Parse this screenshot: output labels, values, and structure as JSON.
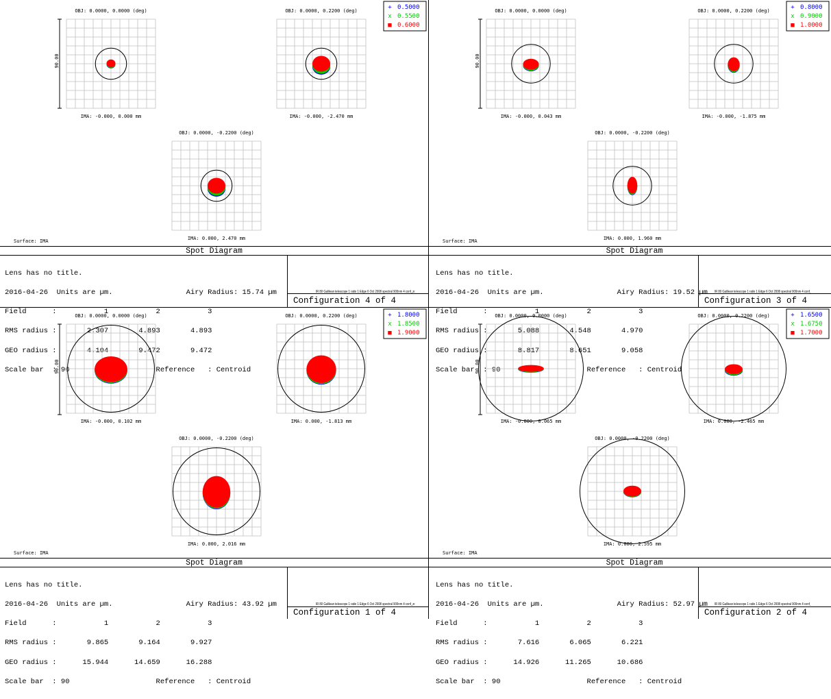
{
  "chart_data": [
    {
      "type": "scatter",
      "title": "Spot Diagram",
      "configuration": "Configuration 4 of 4",
      "legend": [
        {
          "wavelength": "0.5000",
          "marker": "+",
          "color": "#0000ff"
        },
        {
          "wavelength": "0.5500",
          "marker": "x",
          "color": "#00cc00"
        },
        {
          "wavelength": "0.6000",
          "marker": "■",
          "color": "#ff0000"
        }
      ],
      "fields": [
        {
          "obj": "OBJ: 0.0000, 0.0000 (deg)",
          "ima": "IMA: -0.000, 0.000 mm",
          "airy_um": 15.74,
          "spot_um": {
            "w": 9,
            "h": 8,
            "dy": 0,
            "sep": 0.6
          }
        },
        {
          "obj": "OBJ: 0.0000, 0.2200 (deg)",
          "ima": "IMA: -0.000, -2.470 mm",
          "airy_um": 15.74,
          "spot_um": {
            "w": 18,
            "h": 16,
            "dy": 1,
            "sep": 2
          }
        },
        {
          "obj": "OBJ: 0.0000, -0.2200 (deg)",
          "ima": "IMA: 0.000, 2.470 mm",
          "airy_um": 15.74,
          "spot_um": {
            "w": 18,
            "h": 16,
            "dy": 1,
            "sep": 2
          }
        }
      ],
      "scale_label": "90.00",
      "surface": "Surface: IMA",
      "info": {
        "line1": "Lens has no title.",
        "line2": "2016-04-26  Units are µm.                 Airy Radius: 15.74 µm",
        "line3": "Field      :           1           2           3",
        "line4": "RMS radius :       2.307       4.893       4.893",
        "line5": "GEO radius :       4.104       9.472       9.472",
        "line6": "Scale bar  : 90                    Reference   : Centroid"
      },
      "file_note": "IR 80 Galilean telescope 1 ratio 1 Edge 6 Oct 2008 spectral 900nm 4 conf_zoo_lens.zmx"
    },
    {
      "type": "scatter",
      "title": "Spot Diagram",
      "configuration": "Configuration 3 of 4",
      "legend": [
        {
          "wavelength": "0.8000",
          "marker": "+",
          "color": "#0000ff"
        },
        {
          "wavelength": "0.9000",
          "marker": "x",
          "color": "#00cc00"
        },
        {
          "wavelength": "1.0000",
          "marker": "■",
          "color": "#ff0000"
        }
      ],
      "fields": [
        {
          "obj": "OBJ: 0.0000, 0.0000 (deg)",
          "ima": "IMA: -0.000, 0.043 mm",
          "airy_um": 19.52,
          "spot_um": {
            "w": 16,
            "h": 11,
            "dy": 1,
            "sep": 1
          }
        },
        {
          "obj": "OBJ: 0.0000, 0.2200 (deg)",
          "ima": "IMA: -0.000, -1.875 mm",
          "airy_um": 19.52,
          "spot_um": {
            "w": 12,
            "h": 14,
            "dy": 1,
            "sep": 1
          }
        },
        {
          "obj": "OBJ: 0.0000, -0.2200 (deg)",
          "ima": "IMA: 0.000, 1.960 mm",
          "airy_um": 19.52,
          "spot_um": {
            "w": 10,
            "h": 17,
            "dy": 0,
            "sep": 1
          }
        }
      ],
      "scale_label": "90.00",
      "surface": "Surface: IMA",
      "info": {
        "line1": "Lens has no title.",
        "line2": "2016-04-26  Units are µm.                 Airy Radius: 19.52 µm",
        "line3": "Field      :           1           2           3",
        "line4": "RMS radius :       5.088       4.548       4.970",
        "line5": "GEO radius :       8.817       8.651       9.058",
        "line6": "Scale bar  : 90                    Reference   : Centroid"
      },
      "file_note": "IR 80 Galilean telescope 1 ratio 1 Edge 6 Oct 2008 spectral 900nm 4 conf_zoo_lens.zmx"
    },
    {
      "type": "scatter",
      "title": "Spot Diagram",
      "configuration": "Configuration 1 of 4",
      "legend": [
        {
          "wavelength": "1.8000",
          "marker": "+",
          "color": "#0000ff"
        },
        {
          "wavelength": "1.8500",
          "marker": "x",
          "color": "#00cc00"
        },
        {
          "wavelength": "1.9000",
          "marker": "■",
          "color": "#ff0000"
        }
      ],
      "fields": [
        {
          "obj": "OBJ: 0.0000, 0.0000 (deg)",
          "ima": "IMA: -0.000, 0.102 mm",
          "airy_um": 43.92,
          "spot_um": {
            "w": 33,
            "h": 26,
            "dy": 1,
            "sep": 1
          }
        },
        {
          "obj": "OBJ: 0.0000, 0.2200 (deg)",
          "ima": "IMA: 0.000, -1.813 mm",
          "airy_um": 43.92,
          "spot_um": {
            "w": 30,
            "h": 28,
            "dy": 1,
            "sep": 1
          }
        },
        {
          "obj": "OBJ: 0.0000, -0.2200 (deg)",
          "ima": "IMA: 0.000, 2.016 mm",
          "airy_um": 43.92,
          "spot_um": {
            "w": 28,
            "h": 32,
            "dy": 1,
            "sep": 1
          }
        }
      ],
      "scale_label": "90.00",
      "surface": "Surface: IMA",
      "info": {
        "line1": "Lens has no title.",
        "line2": "2016-04-26  Units are µm.                 Airy Radius: 43.92 µm",
        "line3": "Field      :           1           2           3",
        "line4": "RMS radius :       9.865       9.164       9.927",
        "line5": "GEO radius :      15.944      14.659      16.288",
        "line6": "Scale bar  : 90                    Reference   : Centroid"
      },
      "file_note": "IR 80 Galilean telescope 1 ratio 1 Edge 6 Oct 2008 spectral 900nm 4 conf_zoo_lens.zmx"
    },
    {
      "type": "scatter",
      "title": "Spot Diagram",
      "configuration": "Configuration 2 of 4",
      "legend": [
        {
          "wavelength": "1.6500",
          "marker": "+",
          "color": "#0000ff"
        },
        {
          "wavelength": "1.6750",
          "marker": "x",
          "color": "#00cc00"
        },
        {
          "wavelength": "1.7000",
          "marker": "■",
          "color": "#ff0000"
        }
      ],
      "fields": [
        {
          "obj": "OBJ: 0.0000, 0.0000 (deg)",
          "ima": "IMA: -0.000, 0.065 mm",
          "airy_um": 52.97,
          "spot_um": {
            "w": 26,
            "h": 7,
            "dy": 0,
            "sep": 0.5
          }
        },
        {
          "obj": "OBJ: 0.0000, 0.2200 (deg)",
          "ima": "IMA: 0.000, -2.465 mm",
          "airy_um": 52.97,
          "spot_um": {
            "w": 18,
            "h": 10,
            "dy": 1,
            "sep": 1
          }
        },
        {
          "obj": "OBJ: 0.0000, -0.2200 (deg)",
          "ima": "IMA: 0.000, 2.595 mm",
          "airy_um": 52.97,
          "spot_um": {
            "w": 18,
            "h": 11,
            "dy": 0,
            "sep": 0.5
          }
        }
      ],
      "scale_label": "90.00",
      "surface": "Surface: IMA",
      "info": {
        "line1": "Lens has no title.",
        "line2": "2016-04-26  Units are µm.                 Airy Radius: 52.97 µm",
        "line3": "Field      :           1           2           3",
        "line4": "RMS radius :       7.616       6.065       6.221",
        "line5": "GEO radius :      14.926      11.265      10.686",
        "line6": "Scale bar  : 90                    Reference   : Centroid"
      },
      "file_note": "IR 80 Galilean telescope 1 ratio 1 Edge 6 Oct 2008 spectral 900nm 4 conf_zoo_lens.zmx"
    }
  ]
}
